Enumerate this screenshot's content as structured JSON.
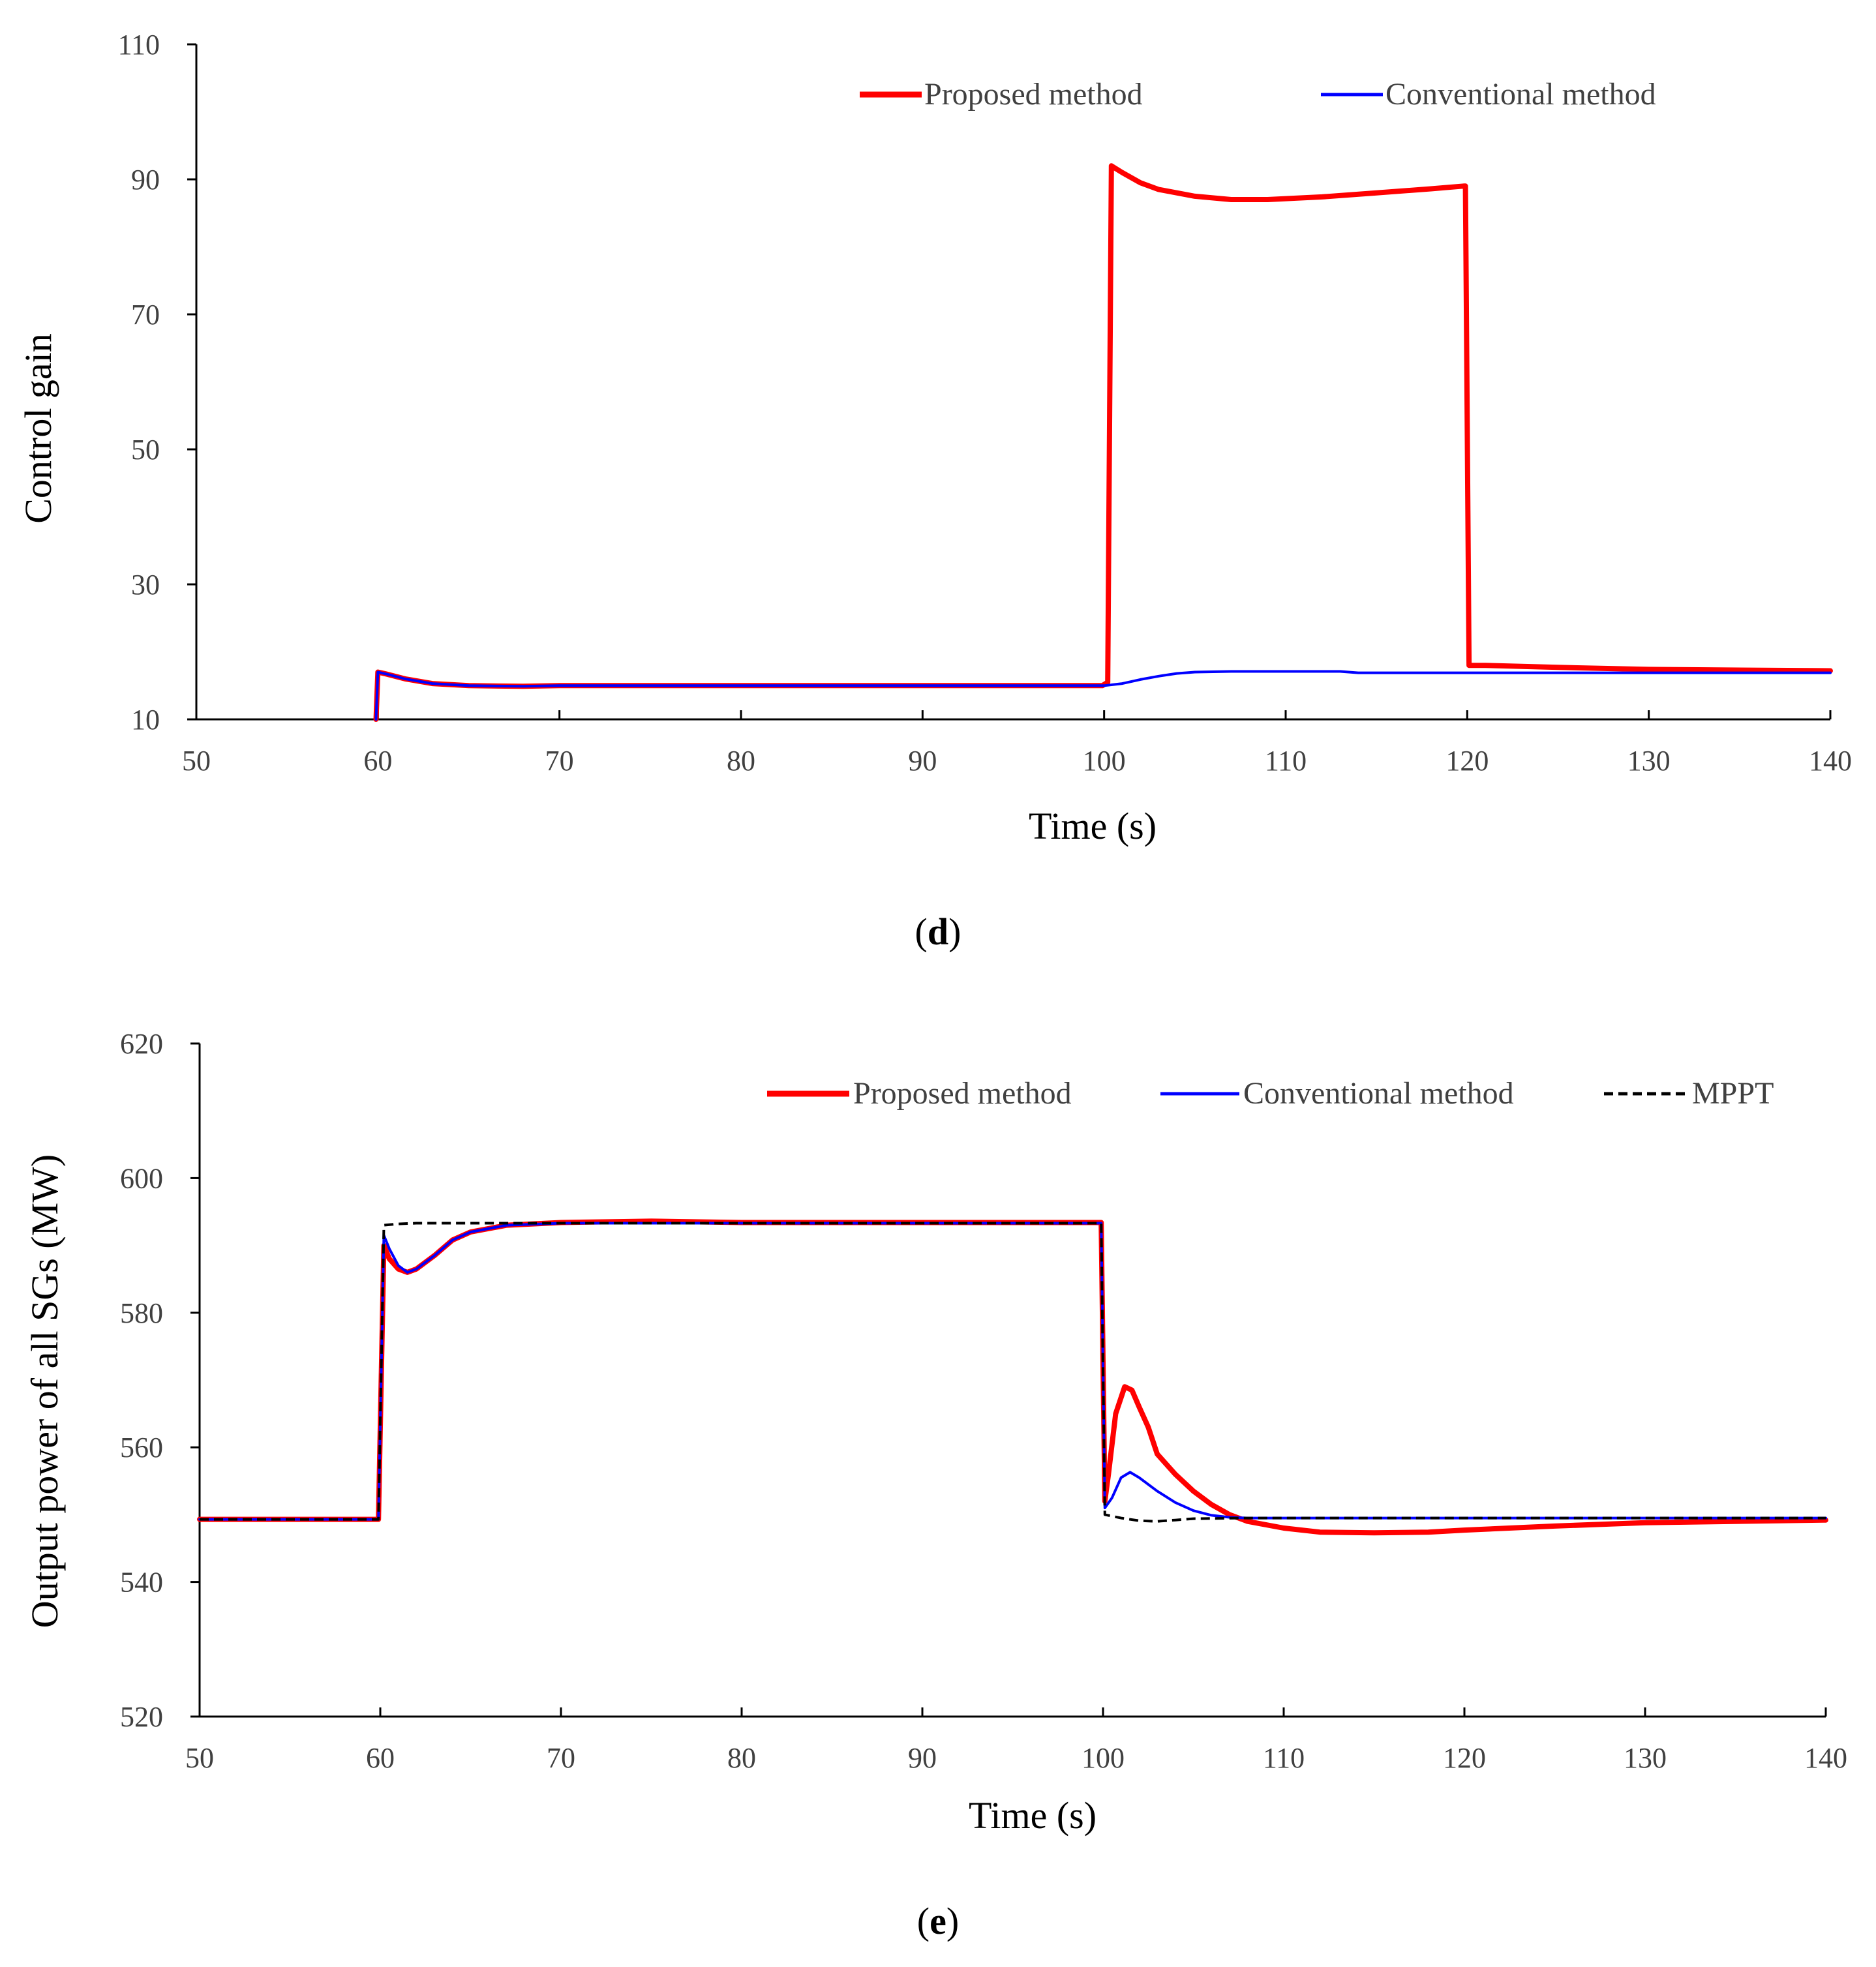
{
  "chart_data": [
    {
      "type": "line",
      "panel": "d",
      "caption": {
        "open": "(",
        "letter": "d",
        "close": ")"
      },
      "xlabel": "Time (s)",
      "ylabel": "Control gain",
      "xlim": [
        50,
        140
      ],
      "ylim": [
        10,
        110
      ],
      "xticks": [
        50,
        60,
        70,
        80,
        90,
        100,
        110,
        120,
        130,
        140
      ],
      "yticks": [
        10,
        30,
        50,
        70,
        90,
        110
      ],
      "legend_position": "top-right",
      "series": [
        {
          "name": "Proposed method",
          "color": "#ff0000",
          "style": "solid-thick",
          "x": [
            59.9,
            60.0,
            60.5,
            61.5,
            63,
            65,
            68,
            70,
            80,
            90,
            99.9,
            100.2,
            100.4,
            101,
            102,
            103,
            104,
            105,
            107,
            109,
            112,
            115,
            118,
            119.8,
            119.9,
            120.1,
            121,
            125,
            130,
            140
          ],
          "y": [
            10,
            17.0,
            16.7,
            16.0,
            15.3,
            15.0,
            14.9,
            15.0,
            15.0,
            15.0,
            15.0,
            15.5,
            92.0,
            91.0,
            89.5,
            88.5,
            88.0,
            87.5,
            87.0,
            87.0,
            87.4,
            88.0,
            88.6,
            89.0,
            89.0,
            18.0,
            18.0,
            17.7,
            17.4,
            17.2
          ]
        },
        {
          "name": "Conventional method",
          "color": "#0000ff",
          "style": "solid-thin",
          "x": [
            59.9,
            60.0,
            60.5,
            61.5,
            63,
            65,
            68,
            70,
            80,
            90,
            100,
            101,
            102,
            103,
            104,
            105,
            107,
            110,
            113,
            114,
            120,
            130,
            140
          ],
          "y": [
            10,
            17.0,
            16.7,
            16.0,
            15.3,
            15.0,
            14.9,
            15.0,
            15.0,
            15.0,
            15.0,
            15.3,
            15.9,
            16.4,
            16.8,
            17.0,
            17.1,
            17.1,
            17.1,
            16.9,
            16.9,
            16.9,
            16.9
          ]
        }
      ]
    },
    {
      "type": "line",
      "panel": "e",
      "caption": {
        "open": "(",
        "letter": "e",
        "close": ")"
      },
      "xlabel": "Time (s)",
      "ylabel": "Output power of all SGs (MW)",
      "xlim": [
        50,
        140
      ],
      "ylim": [
        520,
        620
      ],
      "xticks": [
        50,
        60,
        70,
        80,
        90,
        100,
        110,
        120,
        130,
        140
      ],
      "yticks": [
        520,
        540,
        560,
        580,
        600,
        620
      ],
      "legend_position": "top-right",
      "series": [
        {
          "name": "Proposed method",
          "color": "#ff0000",
          "style": "solid-thick",
          "x": [
            50,
            59.9,
            60.2,
            60.5,
            61,
            61.5,
            62,
            63,
            64,
            65,
            67,
            70,
            75,
            80,
            90,
            99.9,
            100.1,
            100.3,
            100.7,
            101.2,
            101.6,
            102,
            102.5,
            103,
            104,
            105,
            106,
            107,
            108,
            110,
            112,
            115,
            118,
            120,
            125,
            130,
            140
          ],
          "y": [
            549.3,
            549.3,
            590,
            588,
            586.5,
            586,
            586.5,
            588.5,
            590.8,
            592,
            593,
            593.4,
            593.6,
            593.4,
            593.4,
            593.4,
            552,
            556,
            565,
            569,
            568.5,
            566,
            563,
            559,
            556,
            553.5,
            551.5,
            550,
            549,
            548,
            547.4,
            547.3,
            547.4,
            547.7,
            548.3,
            548.8,
            549.2
          ]
        },
        {
          "name": "Conventional method",
          "color": "#0000ff",
          "style": "solid-thin",
          "x": [
            50,
            59.9,
            60.2,
            60.5,
            61,
            61.5,
            62,
            63,
            64,
            65,
            67,
            70,
            80,
            90,
            99.9,
            100.1,
            100.5,
            101,
            101.5,
            102,
            103,
            104,
            105,
            106,
            107,
            108,
            110,
            120,
            130,
            140
          ],
          "y": [
            549.3,
            549.3,
            591.5,
            589.5,
            587,
            586,
            586.5,
            588.5,
            590.8,
            592,
            593,
            593.3,
            593.3,
            593.3,
            593.3,
            551,
            552.5,
            555.5,
            556.3,
            555.5,
            553.5,
            551.8,
            550.6,
            549.9,
            549.6,
            549.5,
            549.5,
            549.5,
            549.5,
            549.5
          ]
        },
        {
          "name": "MPPT",
          "color": "#000000",
          "style": "dashed",
          "x": [
            50,
            59.9,
            60.2,
            61,
            62,
            65,
            70,
            80,
            90,
            99.9,
            100.1,
            101,
            102,
            103,
            104,
            105,
            108,
            120,
            130,
            140
          ],
          "y": [
            549.3,
            549.3,
            593.0,
            593.2,
            593.3,
            593.3,
            593.3,
            593.3,
            593.3,
            593.3,
            550.0,
            549.5,
            549.1,
            549.0,
            549.2,
            549.4,
            549.5,
            549.5,
            549.5,
            549.5
          ]
        }
      ]
    }
  ]
}
